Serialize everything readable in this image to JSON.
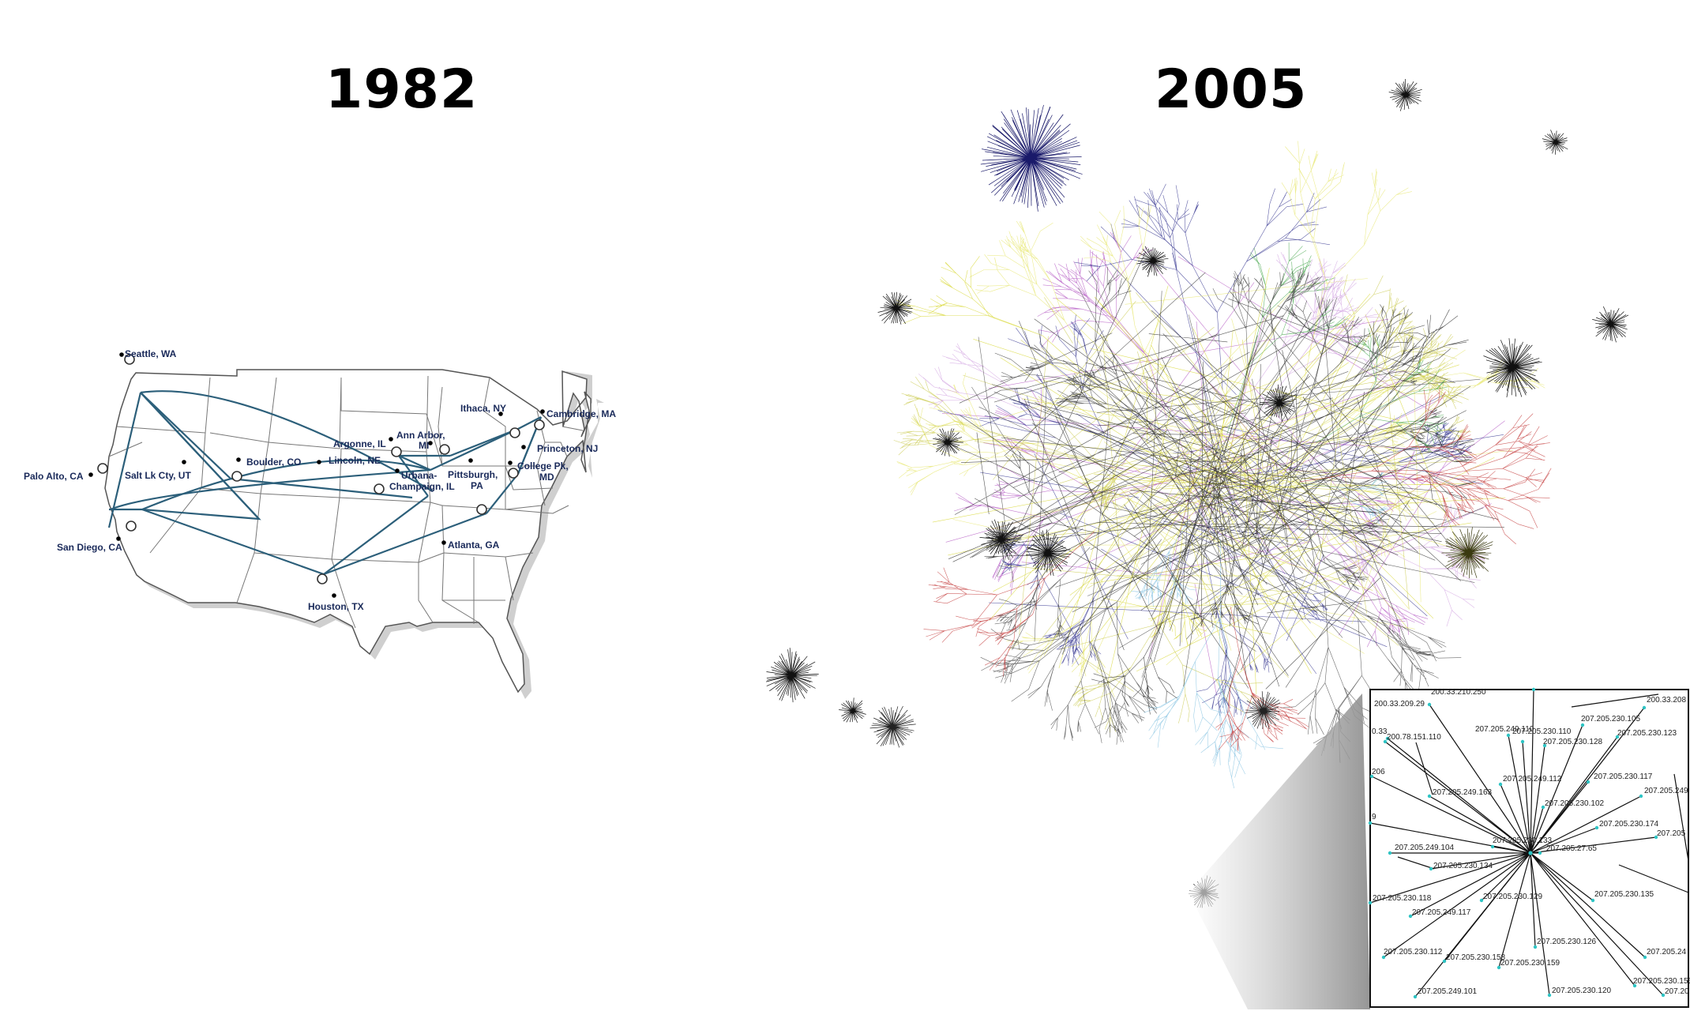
{
  "years": {
    "left": "1982",
    "right": "2005"
  },
  "map": {
    "cities": [
      {
        "label": "Seattle, WA"
      },
      {
        "label": "Ithaca, NY"
      },
      {
        "label": "Cambridge, MA"
      },
      {
        "label": "Ann Arbor,"
      },
      {
        "label": "MI"
      },
      {
        "label": "Argonne, IL"
      },
      {
        "label": "Princeton, NJ"
      },
      {
        "label": "Boulder, CO"
      },
      {
        "label": "Lincoln, NE"
      },
      {
        "label": "Palo Alto, CA"
      },
      {
        "label": "Salt Lk Cty, UT"
      },
      {
        "label": "Urbana-"
      },
      {
        "label": "Champaign, IL"
      },
      {
        "label": "Pittsburgh,"
      },
      {
        "label": "PA"
      },
      {
        "label": "College Pk,"
      },
      {
        "label": "MD"
      },
      {
        "label": "San Diego, CA"
      },
      {
        "label": "Atlanta, GA"
      },
      {
        "label": "Houston, TX"
      }
    ]
  },
  "zoom": {
    "labels": [
      "200.33.209.29",
      "200.33.210.250",
      "200.33.208",
      "0.33",
      "200.78.151.110",
      "207.205.249.110",
      "207.205.230.110",
      "207.205.230.105",
      "207.205.230.128",
      "207.205.230.123",
      "206",
      "207.205.249.112",
      "207.205.230.117",
      "207.205.249.163",
      "207.205.230.102",
      "207.205.249",
      "207.205.230.174",
      "207.205",
      "9",
      "207.205.249.104",
      "207.205.230.133",
      "207.205.27.65",
      "207.205.230.134",
      "207.205.230.118",
      "207.205.230.129",
      "207.205.230.135",
      "207.205.249.117",
      "207.205.230.126",
      "207.205.230.112",
      "207.205.230.158",
      "207.205.24",
      "207.205.230.159",
      "207.205.230.155",
      "207.205.249.101",
      "207.205.230.120",
      "207.20"
    ]
  },
  "colors": {
    "map_line": "#2c5f7a",
    "map_label": "#1a2a5a",
    "node_cyan": "#2ec4c4"
  }
}
